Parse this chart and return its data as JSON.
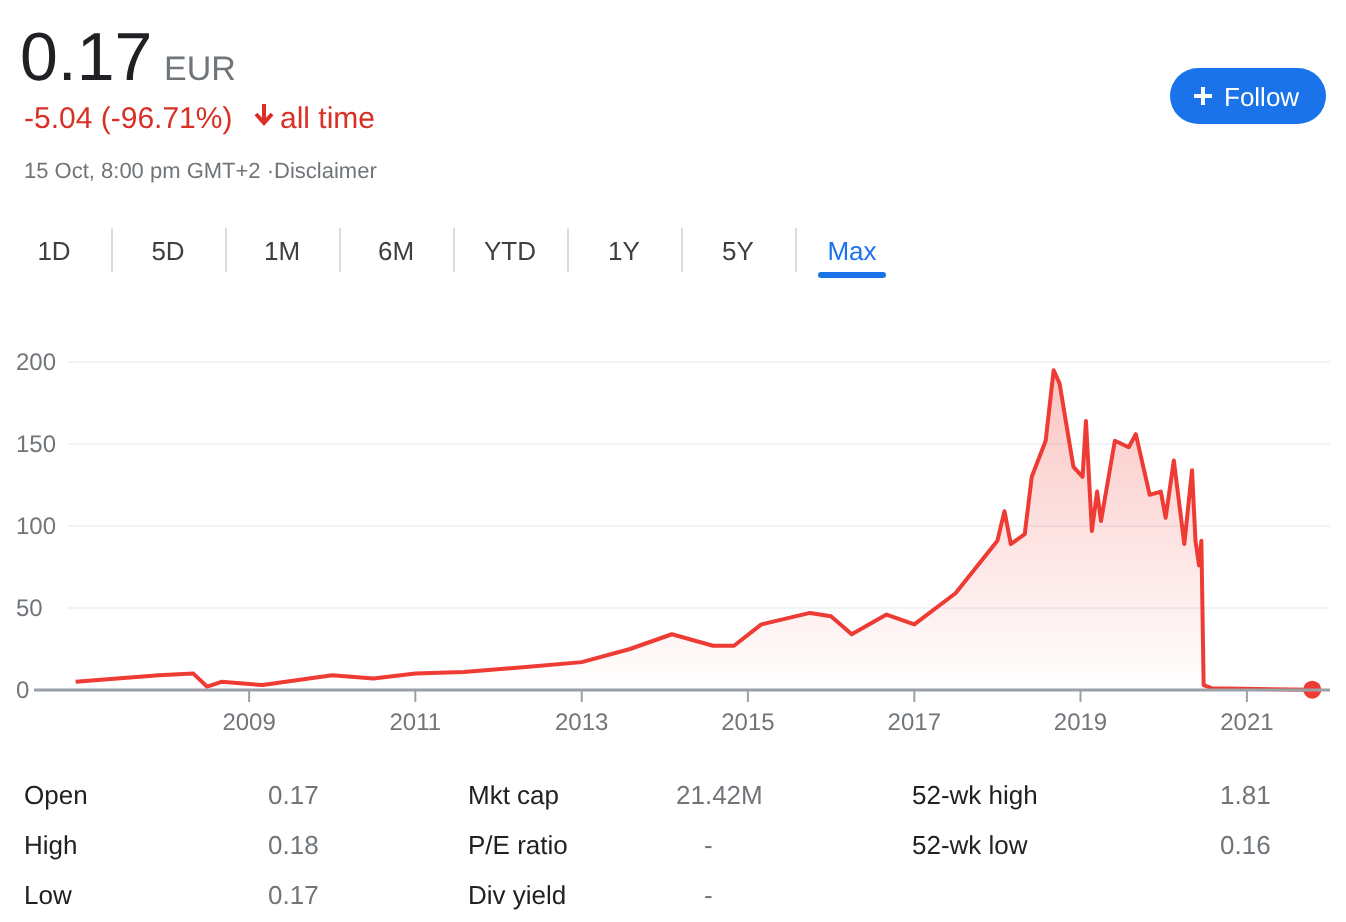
{
  "chart_data": {
    "type": "area",
    "title": "0.17",
    "annotations": [
      "EUR",
      "-5.04 (-96.71%)",
      "all time",
      "15 Oct, 8:00 pm GMT+2 ·Disclaimer",
      "Follow",
      "1D",
      "5D",
      "1M",
      "6M",
      "YTD",
      "1Y",
      "5Y",
      "Max",
      "Open",
      "0.17",
      "Mkt cap",
      "21.42M",
      "52-wk high",
      "1.81",
      "High",
      "0.18",
      "P/E ratio",
      "-",
      "52-wk low",
      "0.16",
      "Low",
      "0.17",
      "Div yield",
      "-"
    ],
    "x": [
      "2006-12",
      "2007-12",
      "2008-05",
      "2008-07",
      "2008-09",
      "2009-03",
      "2010-01",
      "2010-07",
      "2011-01",
      "2011-08",
      "2012-05",
      "2013-01",
      "2013-08",
      "2014-02",
      "2014-08",
      "2014-11",
      "2015-03",
      "2015-10",
      "2016-01",
      "2016-04",
      "2016-09",
      "2017-01",
      "2017-07",
      "2018-01",
      "2018-02",
      "2018-03",
      "2018-05",
      "2018-06",
      "2018-08",
      "2018-09-05",
      "2018-10",
      "2018-12",
      "2019-01-10",
      "2019-01-25",
      "2019-02-20",
      "2019-03-15",
      "2019-04",
      "2019-06",
      "2019-08",
      "2019-09",
      "2019-11",
      "2019-12-20",
      "2020-01-10",
      "2020-02-15",
      "2020-04-01",
      "2020-05-05",
      "2020-05-20",
      "2020-06-05",
      "2020-06-15",
      "2020-06-25",
      "2020-08",
      "2021-10-15"
    ],
    "series": [
      {
        "color": "#ee3b34",
        "values": [
          5,
          9,
          10,
          2,
          5,
          3,
          9,
          7,
          10,
          11,
          14,
          17,
          25,
          34,
          27,
          27,
          40,
          47,
          45,
          34,
          46,
          40,
          59,
          91,
          109,
          89,
          95,
          130,
          152,
          195,
          187,
          136,
          130,
          164,
          97,
          121,
          103,
          152,
          148,
          156,
          119,
          121,
          105,
          140,
          89,
          134,
          91,
          76,
          91,
          3,
          1,
          0.17
        ]
      }
    ],
    "xlim": [
      "2006-06",
      "2022-01"
    ],
    "xticks": [
      "2009",
      "2011",
      "2013",
      "2015",
      "2017",
      "2019",
      "2021"
    ],
    "ylim": [
      0,
      200
    ],
    "yticks": [
      0,
      50,
      100,
      150,
      200
    ],
    "grid": "y"
  }
}
